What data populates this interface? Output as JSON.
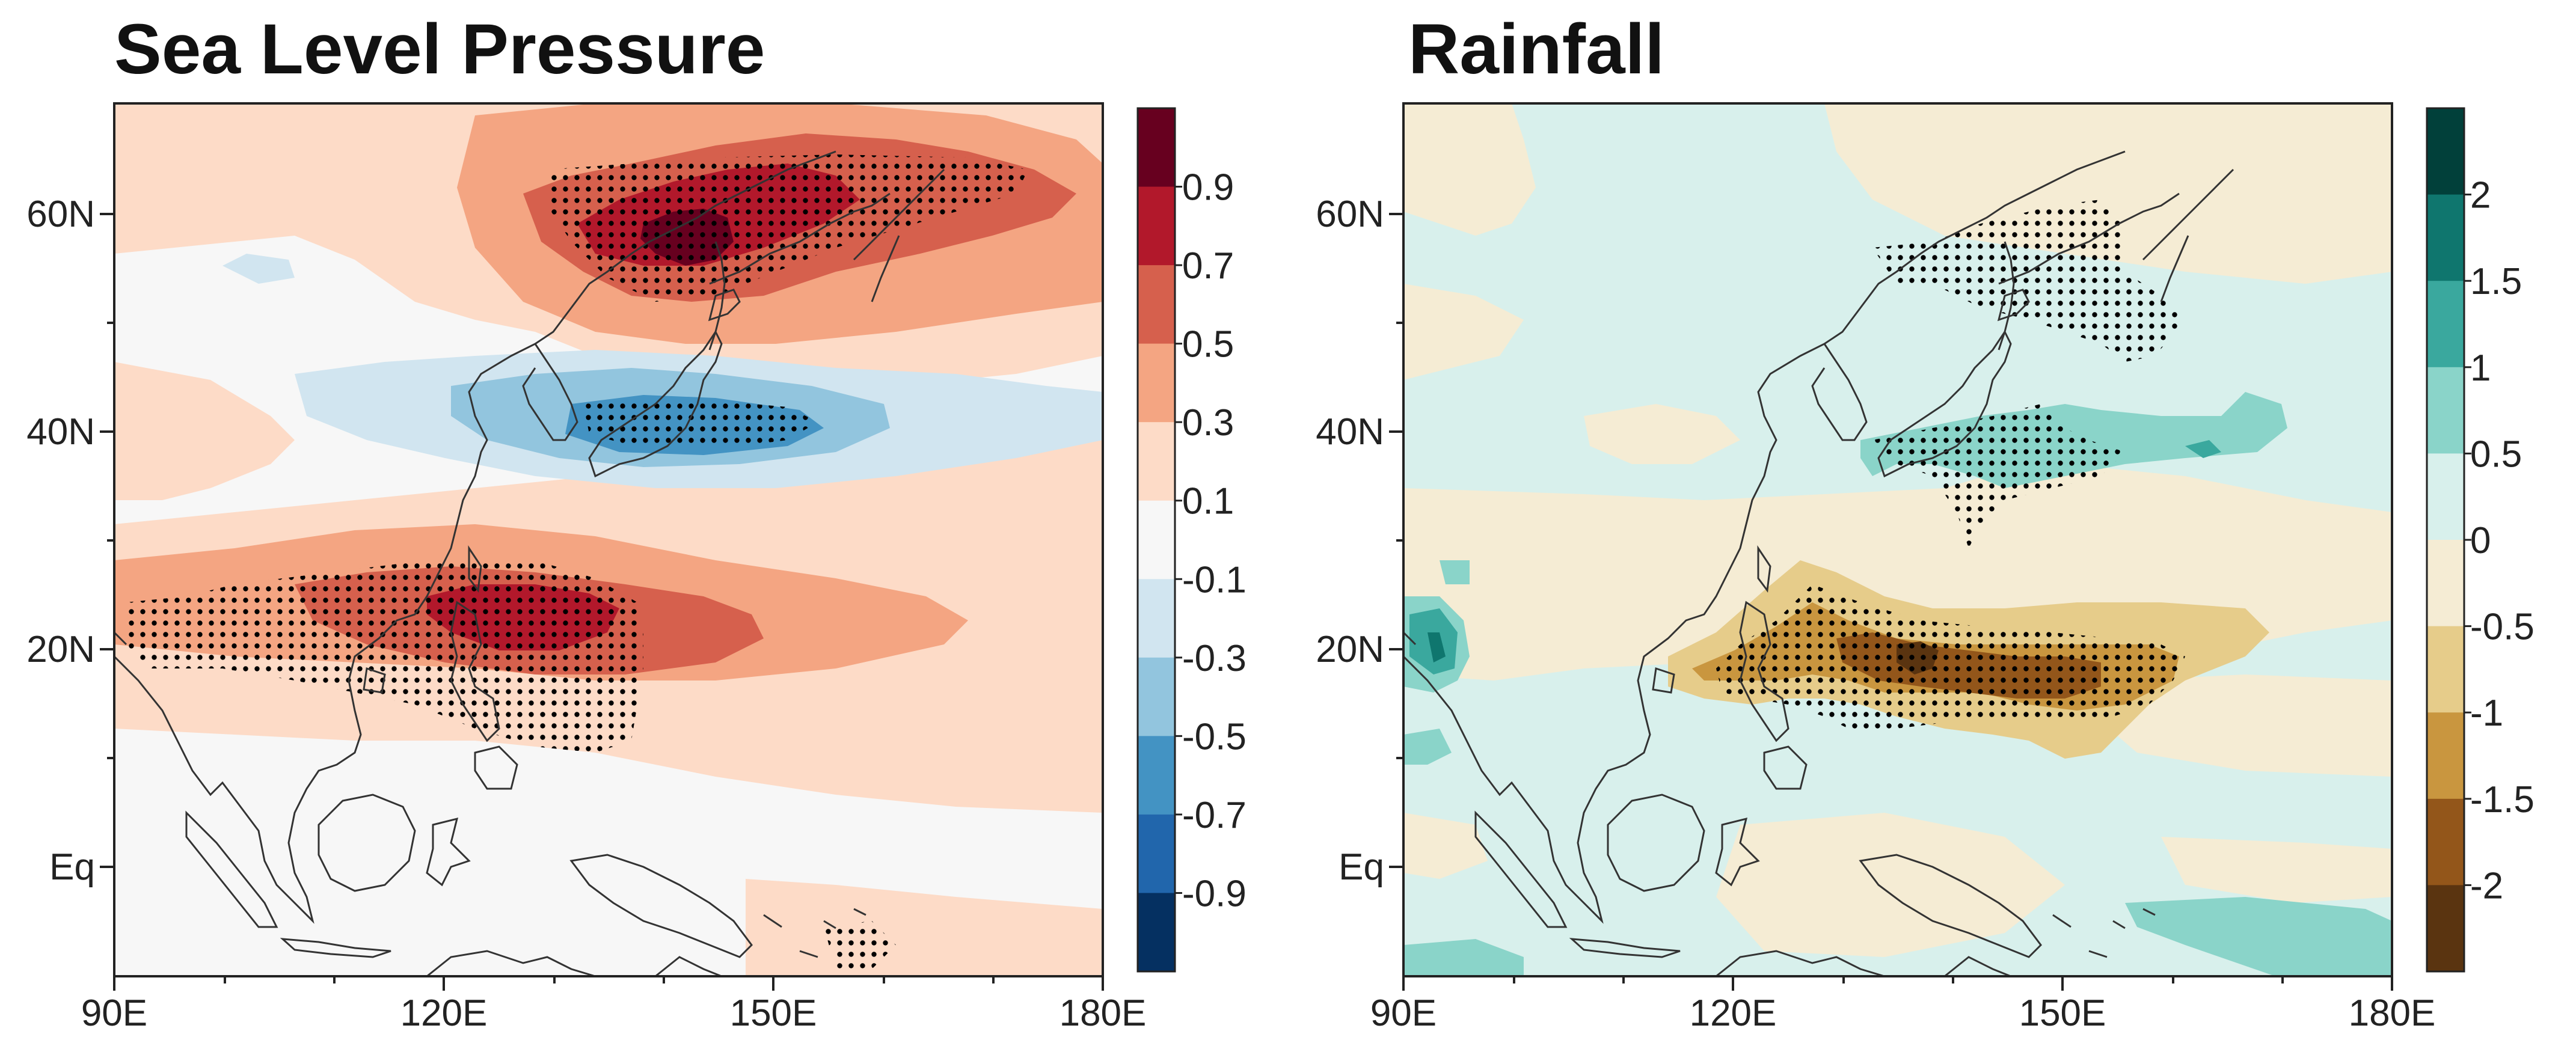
{
  "panels": [
    {
      "title": "Sea Level Pressure",
      "x_ticks": [
        "90E",
        "120E",
        "150E",
        "180E"
      ],
      "y_ticks": [
        "Eq",
        "20N",
        "40N",
        "60N"
      ],
      "colorbar_labels": [
        "0.9",
        "0.7",
        "0.5",
        "0.3",
        "0.1",
        "-0.1",
        "-0.3",
        "-0.5",
        "-0.7",
        "-0.9"
      ],
      "colorbar_colors": [
        "#67001f",
        "#b2182b",
        "#d6604d",
        "#f4a582",
        "#fddbc7",
        "#f7f7f7",
        "#d1e5f0",
        "#92c5de",
        "#4393c3",
        "#2166ac",
        "#053061"
      ]
    },
    {
      "title": "Rainfall",
      "x_ticks": [
        "90E",
        "120E",
        "150E",
        "180E"
      ],
      "y_ticks": [
        "Eq",
        "20N",
        "40N",
        "60N"
      ],
      "colorbar_labels": [
        "2",
        "1.5",
        "1",
        "0.5",
        "0",
        "-0.5",
        "-1",
        "-1.5",
        "-2"
      ],
      "colorbar_colors": [
        "#01403a",
        "#0f766e",
        "#3aa89e",
        "#8ad4c9",
        "#d8f0ec",
        "#f5ecd4",
        "#e6cc8a",
        "#c9963f",
        "#93561a",
        "#5a3410"
      ]
    }
  ]
}
